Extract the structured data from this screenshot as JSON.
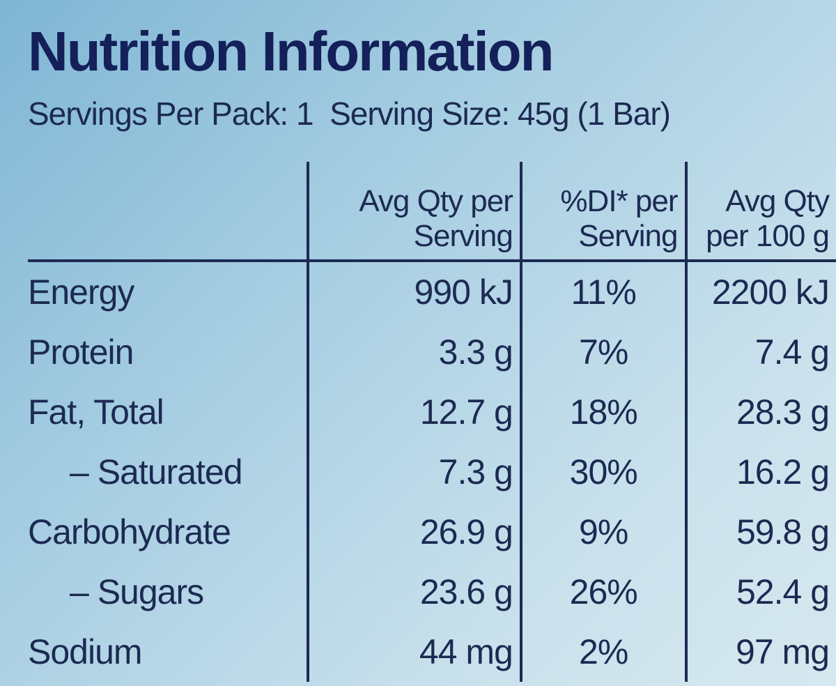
{
  "title": "Nutrition Information",
  "subtitle": "Servings Per Pack: 1  Serving Size: 45g (1 Bar)",
  "table": {
    "header": [
      "Avg Qty per Serving",
      "%DI* per Serving",
      "Avg Qty per 100 g"
    ],
    "rows": [
      [
        "Energy",
        "990 kJ",
        "11%",
        "2200 kJ"
      ],
      [
        "Protein",
        "3.3 g",
        "7%",
        "7.4 g"
      ],
      [
        "Fat, Total",
        "12.7 g",
        "18%",
        "28.3 g"
      ],
      [
        "– Saturated",
        "7.3 g",
        "30%",
        "16.2 g"
      ],
      [
        "Carbohydrate",
        "26.9 g",
        "9%",
        "59.8 g"
      ],
      [
        "– Sugars",
        "23.6 g",
        "26%",
        "52.4 g"
      ],
      [
        "Sodium",
        "44 mg",
        "2%",
        "97 mg"
      ]
    ]
  }
}
